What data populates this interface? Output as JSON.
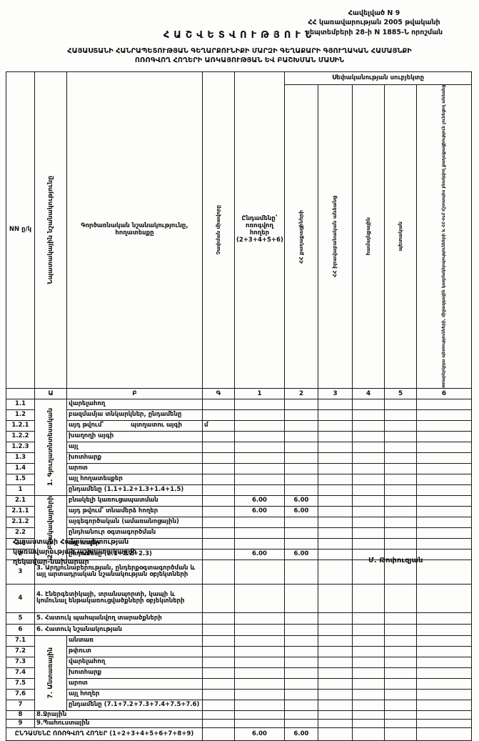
{
  "header": {
    "annex1": "Հավելված N  9",
    "annex2": "ՀՀ կառավարության 2005 թվականի",
    "annex3": "սեպտեմբերի 28-ի N 1885-Ն որոշման",
    "title": "ՀԱՇՎԵՏՎՈՒԹՅՈՒՆ",
    "subtitle1": "ՀԱՅԱՍՏԱՆԻ ՀԱՆՐԱՊԵՏՈՒԹՅԱՆ ԳԵՂԱՐՔՈՒՆԻՔԻ ՄԱՐԶԻ ԳԵՂԱՔԱՐԻ ԳՅՈՒՂԱԿԱՆ ՀԱՄԱՅՆՔԻ",
    "subtitle2": "ՈՌՈԳՎՈՂ ՀՈՂԵՐԻ ԱՌԿԱՅՈՒԹՅԱՆ ԵՎ ԲԱՇԽՄԱՆ ՄԱՍԻՆ"
  },
  "table": {
    "cols": {
      "nn": "NN ը/կ",
      "purpose": "Նպատակային նշանակությունը",
      "functional": "Գործառնական նշանակությունը, հողատեսքը",
      "unit": "Չափման միավորը",
      "total": "Ընդամենը՝ ոռոգվող հողեր (2+3+4+5+6)",
      "ownership": "Սեփականության սուբյեկտը",
      "own": [
        "ՀՀ քաղաքացիների",
        "ՀՀ իրավաբանական անձանց",
        "համայնքային",
        "պետական",
        "օտարերկրյա պետությունների, միջազգային կազմակերպությունների և ՀՀ-ում մշտապես բնակվող քաղաքացիություն չունեցող անձանց"
      ]
    },
    "letters": [
      "Ա",
      "Բ",
      "Գ",
      "1",
      "2",
      "3",
      "4",
      "5",
      "6"
    ],
    "s1": {
      "group": "1. Գյուղատնտեսական",
      "rows": [
        {
          "nn": "1.1",
          "label": "վարելահող"
        },
        {
          "nn": "1.2",
          "label": "բազմամյա տնկարկներ, ընդամենը"
        },
        {
          "nn": "1.2.1",
          "label": "այդ թվում՝",
          "label2": "պտղատու այգի",
          "unit": "մ"
        },
        {
          "nn": "1.2.2",
          "label2": "խաղողի այգի"
        },
        {
          "nn": "1.2.3",
          "label": "այլ"
        },
        {
          "nn": "1.3",
          "label": "խոտհարք"
        },
        {
          "nn": "1.4",
          "label": "արոտ"
        },
        {
          "nn": "1.5",
          "label": "այլ հողատեսքեր"
        },
        {
          "nn": "1",
          "label": "ընդամենը (1.1+1.2+1.3+1.4+1.5)"
        }
      ]
    },
    "s2": {
      "group": "2. Բնակավայրերի",
      "rows": [
        {
          "nn": "2.1",
          "label": "բնակելի կառուցապատման",
          "total": "6.00",
          "citizens": "6.00"
        },
        {
          "nn": "2.1.1",
          "label": "այդ թվում՝ տնամերձ հողեր",
          "total": "6.00",
          "citizens": "6.00"
        },
        {
          "nn": "2.1.2",
          "label": "այգեգործական (ամառանոցային)"
        },
        {
          "nn": "2.2",
          "label": "ընդհանուր օգտագործման"
        },
        {
          "nn": "2.3",
          "label": "այլ հողեր"
        },
        {
          "nn": "2",
          "label": "ընդամենը (2.1+2.2+2.3)",
          "total": "6.00",
          "citizens": "6.00"
        }
      ]
    },
    "mid": [
      {
        "nn": "3",
        "label": "3. Արդյունաբերության, ընդերքօգտագործման և այլ արտադրական նշանակության օբյեկտների"
      },
      {
        "nn": "4",
        "label": "4. Էներգետիկայի, տրանսպորտի, կապի և կոմունալ ենթակառուցվածքների օբյեկտների"
      },
      {
        "nn": "5",
        "label": "5. Հատուկ պահպանվող տարածքների"
      },
      {
        "nn": "6",
        "label": "6. Հատուկ նշանակության"
      }
    ],
    "s7": {
      "group": "7. Անտառային",
      "rows": [
        {
          "nn": "7.1",
          "label": "անտառ"
        },
        {
          "nn": "7.2",
          "label": "թփուտ"
        },
        {
          "nn": "7.3",
          "label": "վարելահող"
        },
        {
          "nn": "7.4",
          "label": "խոտհարք"
        },
        {
          "nn": "7.5",
          "label": "արոտ"
        },
        {
          "nn": "7.6",
          "label": "այլ հողեր"
        },
        {
          "nn": "7",
          "label": "ընդամենը (7.1+7.2+7.3+7.4+7.5+7.6)"
        }
      ]
    },
    "tail": [
      {
        "nn": "8",
        "label": "8.Ջրային"
      },
      {
        "nn": "9",
        "label": "9.Պահուստային"
      }
    ],
    "grand": {
      "label": "ԸՆԴԱՄԵՆԸ ՈՌՈԳՎՈՂ ՀՈՂԵՐ (1+2+3+4+5+6+7+8+9)",
      "total": "6.00",
      "citizens": "6.00"
    }
  },
  "footer": {
    "org1": "Հայաստանի Հանրապետության",
    "org2": "կառավարության աշխատակազմի",
    "org3": "ղեկավար-նախարար",
    "signer": "Մ. Թոփուզյան"
  }
}
